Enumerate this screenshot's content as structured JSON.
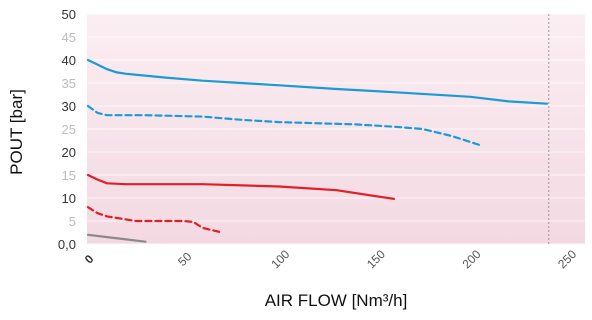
{
  "chart_data": {
    "type": "line",
    "xlabel": "AIR FLOW [Nm³/h]",
    "ylabel": "POUT [bar]",
    "xlim": [
      0,
      250
    ],
    "ylim": [
      0,
      50
    ],
    "x_ticks": [
      "0",
      "50",
      "100",
      "150",
      "200",
      "250"
    ],
    "y_ticks": [
      {
        "value": 0,
        "label": "0,0"
      },
      {
        "value": 5,
        "label": "5"
      },
      {
        "value": 10,
        "label": "10"
      },
      {
        "value": 15,
        "label": "15"
      },
      {
        "value": 20,
        "label": "20"
      },
      {
        "value": 25,
        "label": "25"
      },
      {
        "value": 30,
        "label": "30"
      },
      {
        "value": 35,
        "label": "35"
      },
      {
        "value": 40,
        "label": "40"
      },
      {
        "value": 45,
        "label": "45"
      },
      {
        "value": 50,
        "label": "50"
      }
    ],
    "grid": true,
    "reference_line_x": 241,
    "colors": {
      "background": "#f5dde6",
      "blue": "#1a9bd7",
      "red": "#e01f26",
      "gray": "#8a8a8a",
      "tick_muted": "#bdbdbd",
      "tick_dark": "#333333"
    },
    "series": [
      {
        "color": "blue",
        "style": "solid",
        "points": [
          [
            0,
            40
          ],
          [
            5,
            39
          ],
          [
            10,
            38
          ],
          [
            15,
            37.3
          ],
          [
            20,
            37
          ],
          [
            40,
            36.2
          ],
          [
            60,
            35.5
          ],
          [
            80,
            35
          ],
          [
            100,
            34.5
          ],
          [
            130,
            33.7
          ],
          [
            160,
            33
          ],
          [
            200,
            32
          ],
          [
            220,
            31
          ],
          [
            240,
            30.5
          ]
        ]
      },
      {
        "color": "blue",
        "style": "dashed",
        "points": [
          [
            0,
            30
          ],
          [
            5,
            28.5
          ],
          [
            10,
            28
          ],
          [
            30,
            28
          ],
          [
            60,
            27.7
          ],
          [
            80,
            27
          ],
          [
            100,
            26.5
          ],
          [
            140,
            26
          ],
          [
            160,
            25.5
          ],
          [
            175,
            25
          ],
          [
            190,
            23.5
          ],
          [
            205,
            21.5
          ]
        ]
      },
      {
        "color": "red",
        "style": "solid",
        "points": [
          [
            0,
            15
          ],
          [
            5,
            14
          ],
          [
            10,
            13.2
          ],
          [
            20,
            13
          ],
          [
            60,
            13
          ],
          [
            100,
            12.5
          ],
          [
            130,
            11.7
          ],
          [
            160,
            9.8
          ]
        ]
      },
      {
        "color": "red",
        "style": "dashed",
        "points": [
          [
            0,
            8
          ],
          [
            5,
            6.7
          ],
          [
            10,
            6
          ],
          [
            25,
            5
          ],
          [
            50,
            5
          ],
          [
            55,
            4.8
          ],
          [
            60,
            3.5
          ],
          [
            70,
            2.5
          ]
        ]
      },
      {
        "color": "gray",
        "style": "solid",
        "points": [
          [
            0,
            2
          ],
          [
            10,
            1.5
          ],
          [
            20,
            1
          ],
          [
            30,
            0.5
          ]
        ]
      }
    ]
  }
}
